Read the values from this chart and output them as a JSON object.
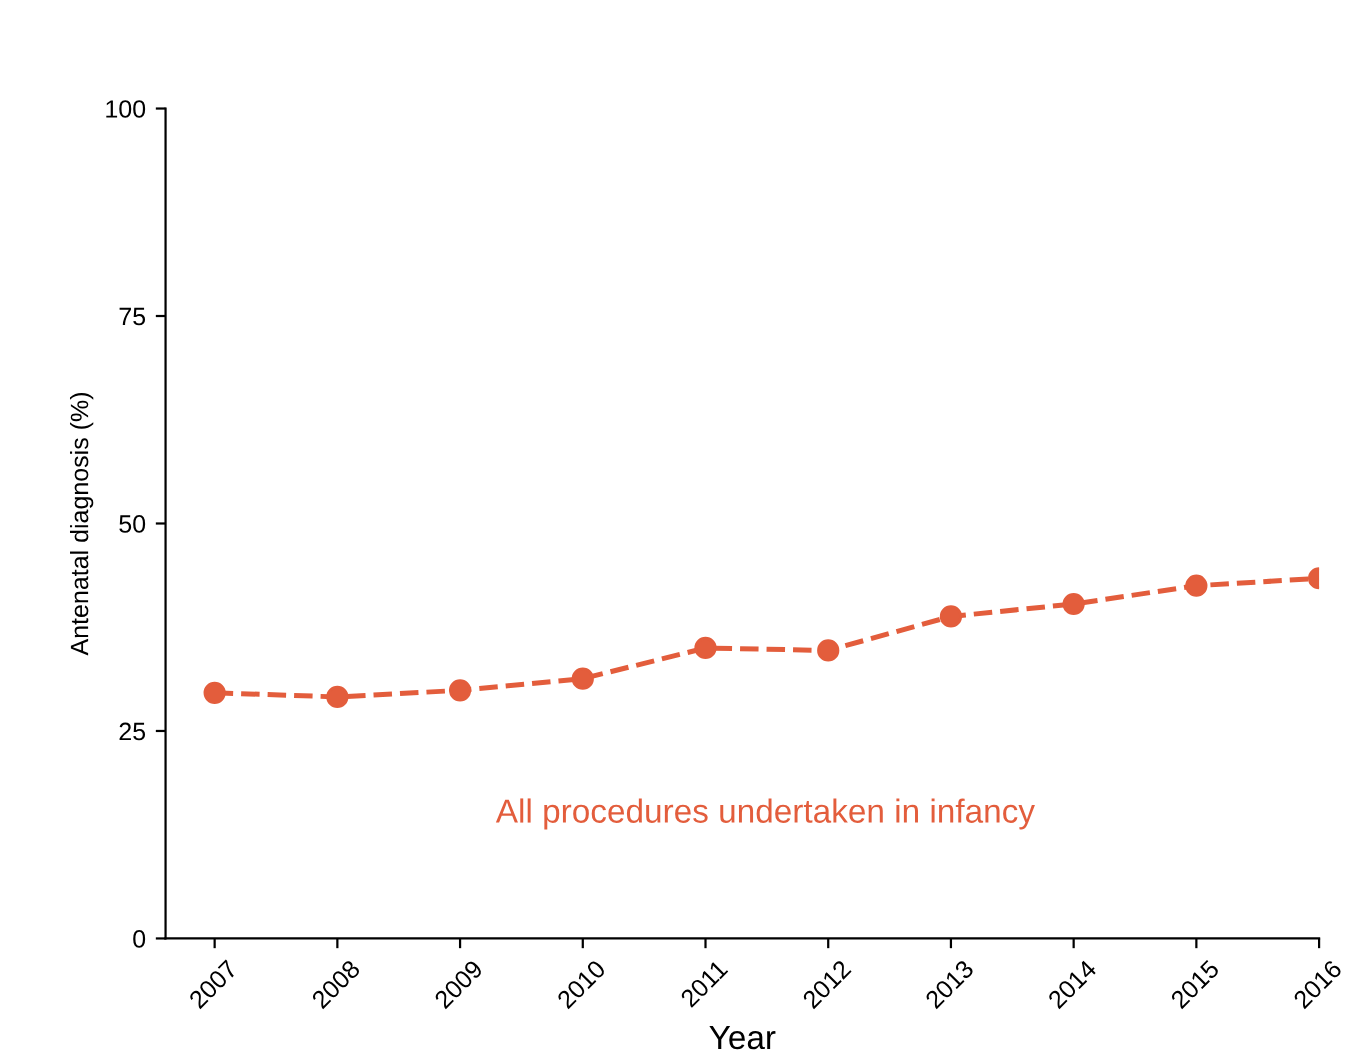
{
  "chart_data": {
    "type": "line",
    "xlabel": "Year",
    "ylabel": "Antenatal diagnosis (%)",
    "x": [
      2007,
      2008,
      2009,
      2010,
      2011,
      2012,
      2013,
      2014,
      2015,
      2016
    ],
    "series": [
      {
        "name": "All procedures undertaken in infancy",
        "color": "#e35d3c",
        "values": [
          29.6,
          29.1,
          29.9,
          31.3,
          35.0,
          34.7,
          38.8,
          40.3,
          42.5,
          43.4
        ]
      }
    ],
    "xlim": [
      2006.6,
      2016
    ],
    "ylim": [
      0,
      100
    ],
    "xticks": [
      2007,
      2008,
      2009,
      2010,
      2011,
      2012,
      2013,
      2014,
      2015,
      2016
    ],
    "yticks": [
      0,
      25,
      50,
      75,
      100
    ],
    "marker": "circle",
    "line_style": "dashed",
    "grid": false,
    "legend": false
  }
}
